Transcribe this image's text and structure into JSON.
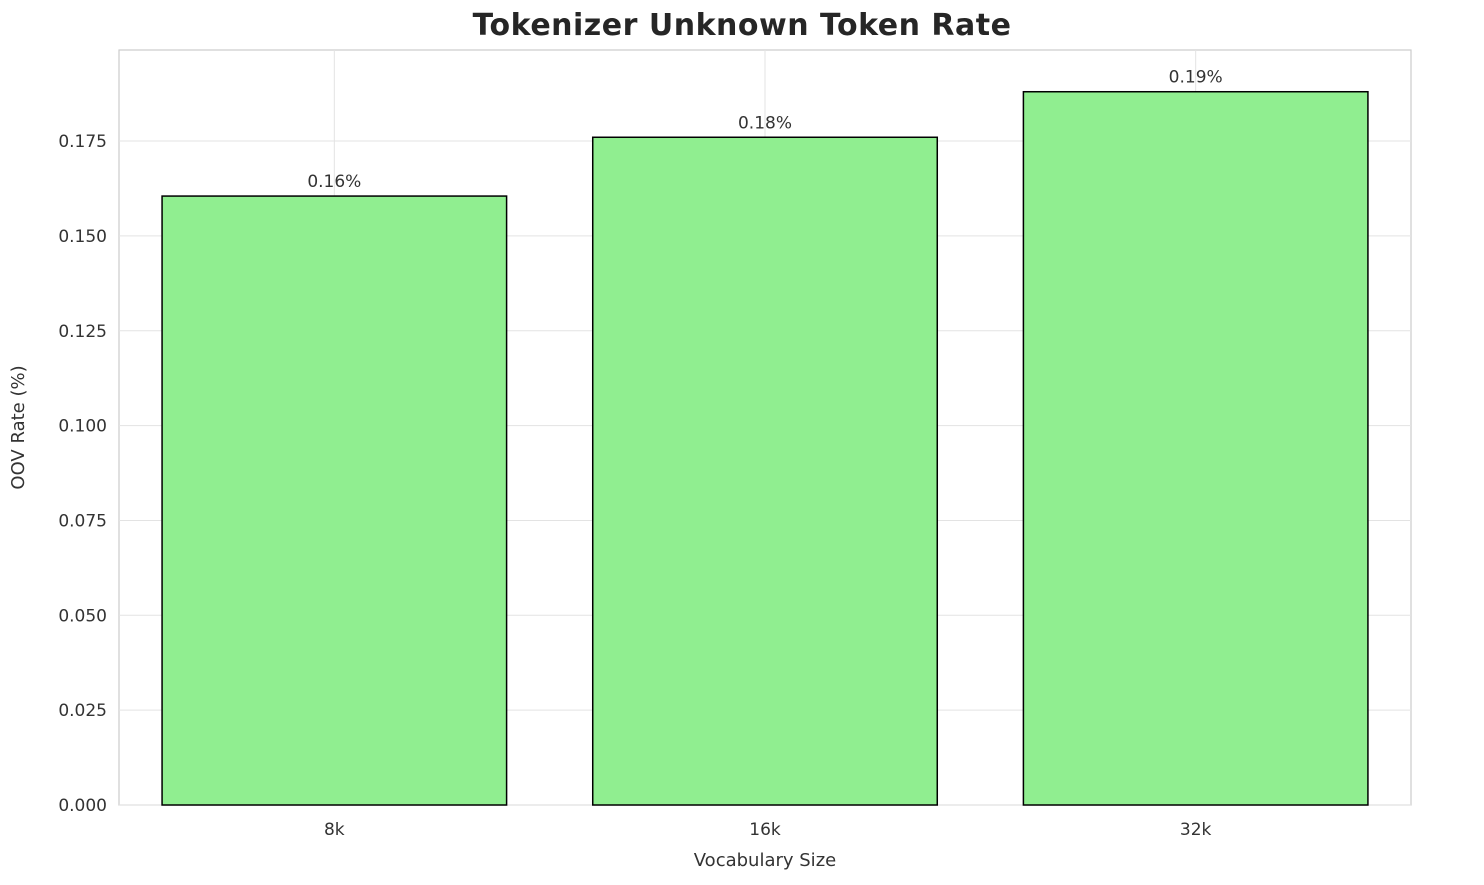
{
  "chart_data": {
    "type": "bar",
    "title": "Tokenizer Unknown Token Rate",
    "xlabel": "Vocabulary Size",
    "ylabel": "OOV Rate (%)",
    "categories": [
      "8k",
      "16k",
      "32k"
    ],
    "values": [
      0.1605,
      0.176,
      0.188
    ],
    "bar_labels": [
      "0.16%",
      "0.18%",
      "0.19%"
    ],
    "ylim": [
      0,
      0.199
    ],
    "yticks": [
      0.0,
      0.025,
      0.05,
      0.075,
      0.1,
      0.125,
      0.15,
      0.175
    ],
    "ytick_labels": [
      "0.000",
      "0.025",
      "0.050",
      "0.075",
      "0.100",
      "0.125",
      "0.150",
      "0.175"
    ],
    "grid": true,
    "legend": "none",
    "bar_color": "#90EE90",
    "bar_edge_color": "#000000",
    "grid_color": "#e3e3e3",
    "frame_color": "#cccccc",
    "tick_label_color": "#333333",
    "background": "#ffffff"
  }
}
